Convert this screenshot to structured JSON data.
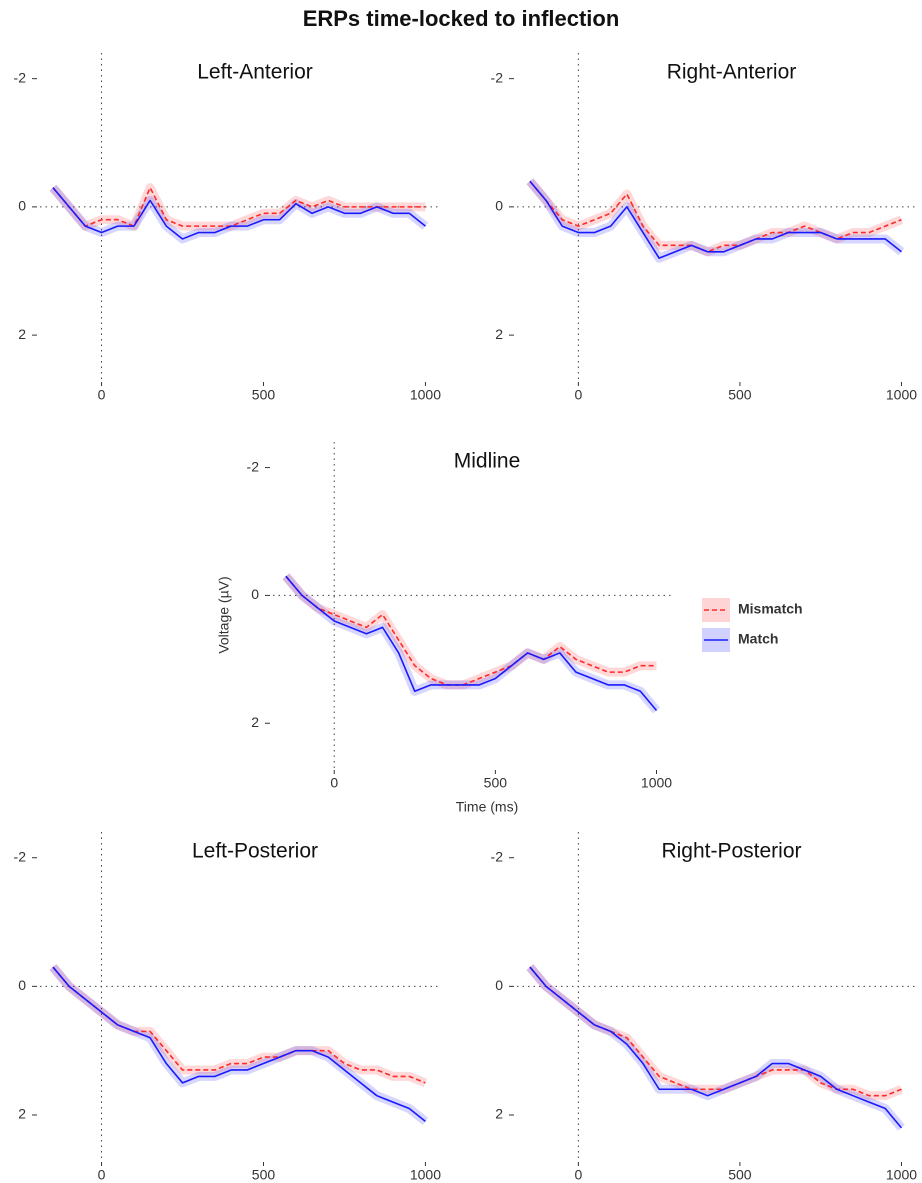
{
  "title": "ERPs time-locked to inflection",
  "chart_data": [
    {
      "type": "line",
      "title": "Left-Anterior",
      "xlim": [
        -190,
        1045
      ],
      "ylim": [
        -2.4,
        2.7
      ],
      "y_reversed": true,
      "xticks": [
        0,
        500,
        1000
      ],
      "yticks": [
        -2,
        0,
        2
      ],
      "hline": 0,
      "vline": 0,
      "x": [
        -150,
        -100,
        -50,
        0,
        50,
        100,
        150,
        200,
        250,
        300,
        350,
        400,
        450,
        500,
        550,
        600,
        650,
        700,
        750,
        800,
        850,
        900,
        950,
        1000
      ],
      "series": [
        {
          "color": "#ff2a2a",
          "dashed": true,
          "values": [
            -0.3,
            0,
            0.3,
            0.2,
            0.2,
            0.3,
            -0.3,
            0.2,
            0.3,
            0.3,
            0.3,
            0.3,
            0.2,
            0.1,
            0.1,
            -0.1,
            0,
            -0.1,
            0,
            0,
            0,
            0,
            0,
            0
          ]
        },
        {
          "color": "#1a1aff",
          "dashed": false,
          "values": [
            -0.3,
            0,
            0.3,
            0.4,
            0.3,
            0.3,
            -0.1,
            0.3,
            0.5,
            0.4,
            0.4,
            0.3,
            0.3,
            0.2,
            0.2,
            -0.05,
            0.1,
            0,
            0.1,
            0.1,
            0,
            0.1,
            0.1,
            0.3
          ]
        }
      ]
    },
    {
      "type": "line",
      "title": "Right-Anterior",
      "xlim": [
        -190,
        1045
      ],
      "ylim": [
        -2.4,
        2.7
      ],
      "y_reversed": true,
      "xticks": [
        0,
        500,
        1000
      ],
      "yticks": [
        -2,
        0,
        2
      ],
      "hline": 0,
      "vline": 0,
      "x": [
        -150,
        -100,
        -50,
        0,
        50,
        100,
        150,
        200,
        250,
        300,
        350,
        400,
        450,
        500,
        550,
        600,
        650,
        700,
        750,
        800,
        850,
        900,
        950,
        1000
      ],
      "series": [
        {
          "color": "#ff2a2a",
          "dashed": true,
          "values": [
            -0.4,
            -0.1,
            0.2,
            0.3,
            0.2,
            0.1,
            -0.2,
            0.3,
            0.6,
            0.6,
            0.6,
            0.7,
            0.6,
            0.6,
            0.5,
            0.4,
            0.4,
            0.3,
            0.4,
            0.5,
            0.4,
            0.4,
            0.3,
            0.2
          ]
        },
        {
          "color": "#1a1aff",
          "dashed": false,
          "values": [
            -0.4,
            -0.1,
            0.3,
            0.4,
            0.4,
            0.3,
            0,
            0.4,
            0.8,
            0.7,
            0.6,
            0.7,
            0.7,
            0.6,
            0.5,
            0.5,
            0.4,
            0.4,
            0.4,
            0.5,
            0.5,
            0.5,
            0.5,
            0.7
          ]
        }
      ]
    },
    {
      "type": "line",
      "title": "Midline",
      "x_label": "Time (ms)",
      "y_label": "Voltage (µV)",
      "legend": "right",
      "xlim": [
        -190,
        1045
      ],
      "ylim": [
        -2.4,
        2.7
      ],
      "y_reversed": true,
      "xticks": [
        0,
        500,
        1000
      ],
      "yticks": [
        -2,
        0,
        2
      ],
      "hline": 0,
      "vline": 0,
      "x": [
        -150,
        -100,
        -50,
        0,
        50,
        100,
        150,
        200,
        250,
        300,
        350,
        400,
        450,
        500,
        550,
        600,
        650,
        700,
        750,
        800,
        850,
        900,
        950,
        1000
      ],
      "series": [
        {
          "name": "Mismatch",
          "color": "#ff2a2a",
          "dashed": true,
          "values": [
            -0.3,
            0,
            0.2,
            0.3,
            0.4,
            0.5,
            0.3,
            0.7,
            1.1,
            1.3,
            1.4,
            1.4,
            1.3,
            1.2,
            1.1,
            0.9,
            1.0,
            0.8,
            1.0,
            1.1,
            1.2,
            1.2,
            1.1,
            1.1
          ]
        },
        {
          "name": "Match",
          "color": "#1a1aff",
          "dashed": false,
          "values": [
            -0.3,
            0,
            0.2,
            0.4,
            0.5,
            0.6,
            0.5,
            0.9,
            1.5,
            1.4,
            1.4,
            1.4,
            1.4,
            1.3,
            1.1,
            0.9,
            1.0,
            0.9,
            1.2,
            1.3,
            1.4,
            1.4,
            1.5,
            1.8
          ]
        }
      ]
    },
    {
      "type": "line",
      "title": "Left-Posterior",
      "xlim": [
        -190,
        1045
      ],
      "ylim": [
        -2.4,
        2.7
      ],
      "y_reversed": true,
      "xticks": [
        0,
        500,
        1000
      ],
      "yticks": [
        -2,
        0,
        2
      ],
      "hline": 0,
      "vline": 0,
      "x": [
        -150,
        -100,
        -50,
        0,
        50,
        100,
        150,
        200,
        250,
        300,
        350,
        400,
        450,
        500,
        550,
        600,
        650,
        700,
        750,
        800,
        850,
        900,
        950,
        1000
      ],
      "series": [
        {
          "color": "#ff2a2a",
          "dashed": true,
          "values": [
            -0.3,
            0,
            0.2,
            0.4,
            0.6,
            0.7,
            0.7,
            1.0,
            1.3,
            1.3,
            1.3,
            1.2,
            1.2,
            1.1,
            1.1,
            1.0,
            1.0,
            1.0,
            1.2,
            1.3,
            1.3,
            1.4,
            1.4,
            1.5
          ]
        },
        {
          "color": "#1a1aff",
          "dashed": false,
          "values": [
            -0.3,
            0,
            0.2,
            0.4,
            0.6,
            0.7,
            0.8,
            1.2,
            1.5,
            1.4,
            1.4,
            1.3,
            1.3,
            1.2,
            1.1,
            1.0,
            1.0,
            1.1,
            1.3,
            1.5,
            1.7,
            1.8,
            1.9,
            2.1
          ]
        }
      ]
    },
    {
      "type": "line",
      "title": "Right-Posterior",
      "xlim": [
        -190,
        1045
      ],
      "ylim": [
        -2.4,
        2.7
      ],
      "y_reversed": true,
      "xticks": [
        0,
        500,
        1000
      ],
      "yticks": [
        -2,
        0,
        2
      ],
      "hline": 0,
      "vline": 0,
      "x": [
        -150,
        -100,
        -50,
        0,
        50,
        100,
        150,
        200,
        250,
        300,
        350,
        400,
        450,
        500,
        550,
        600,
        650,
        700,
        750,
        800,
        850,
        900,
        950,
        1000
      ],
      "series": [
        {
          "color": "#ff2a2a",
          "dashed": true,
          "values": [
            -0.3,
            0,
            0.2,
            0.4,
            0.6,
            0.7,
            0.8,
            1.1,
            1.4,
            1.5,
            1.6,
            1.6,
            1.6,
            1.5,
            1.4,
            1.3,
            1.3,
            1.3,
            1.5,
            1.6,
            1.6,
            1.7,
            1.7,
            1.6
          ]
        },
        {
          "color": "#1a1aff",
          "dashed": false,
          "values": [
            -0.3,
            0,
            0.2,
            0.4,
            0.6,
            0.7,
            0.9,
            1.2,
            1.6,
            1.6,
            1.6,
            1.7,
            1.6,
            1.5,
            1.4,
            1.2,
            1.2,
            1.3,
            1.4,
            1.6,
            1.7,
            1.8,
            1.9,
            2.2
          ]
        }
      ]
    }
  ]
}
